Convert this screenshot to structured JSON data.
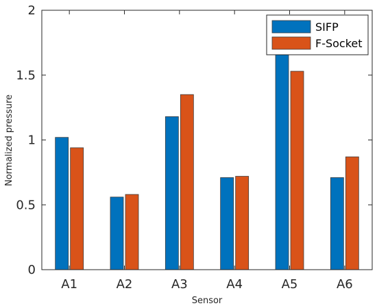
{
  "chart_data": {
    "type": "bar",
    "categories": [
      "A1",
      "A2",
      "A3",
      "A4",
      "A5",
      "A6"
    ],
    "series": [
      {
        "name": "SIFP",
        "color": "#0072BD",
        "values": [
          1.02,
          0.56,
          1.18,
          0.71,
          1.8,
          0.71
        ]
      },
      {
        "name": "F-Socket",
        "color": "#D95319",
        "values": [
          0.94,
          0.58,
          1.35,
          0.72,
          1.53,
          0.87
        ]
      }
    ],
    "xlabel": "Sensor",
    "ylabel": "Normalized pressure",
    "ylim": [
      0,
      2
    ],
    "yticks": [
      "0",
      "0.5",
      "1",
      "1.5",
      "2"
    ],
    "grid": false,
    "legend_position": "top-right"
  }
}
